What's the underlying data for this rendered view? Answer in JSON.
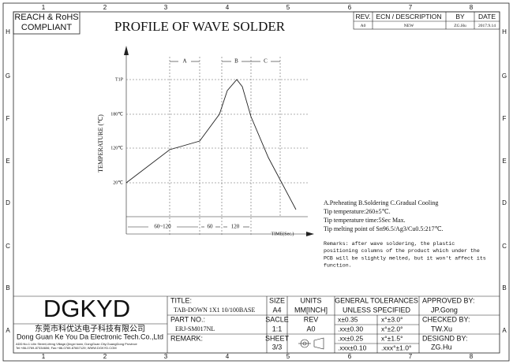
{
  "badge": [
    "REACH & RoHS",
    "COMPLIANT"
  ],
  "title": "PROFILE OF WAVE SOLDER",
  "zones": {
    "columns": [
      "1",
      "2",
      "3",
      "4",
      "5",
      "6",
      "7",
      "8"
    ],
    "rows": [
      "H",
      "G",
      "F",
      "E",
      "D",
      "C",
      "B",
      "A"
    ]
  },
  "revision": {
    "headers": [
      "REV.",
      "ECN / DESCRIPTION",
      "BY",
      "DATE"
    ],
    "rows": [
      [
        "A0",
        "NEW",
        "ZG.Hu",
        "2017.9.14"
      ]
    ]
  },
  "profile": {
    "y_axis_title": "TEMPERATURE (℃)",
    "x_axis_title": "TIME(Sec.)",
    "temperature_labels": [
      "T1P",
      "180℃",
      "120℃",
      "20℃"
    ],
    "phases": [
      "A",
      "B",
      "C"
    ],
    "durations": [
      "60~120",
      "60",
      "120"
    ]
  },
  "notes": [
    "A.Preheating  B.Soldering  C.Gradual Cooling",
    "Tip temperature:260±5℃.",
    "Tip temperature time:5Sec Max.",
    "Tip melting point of Sn96.5/Ag3/Cu0.5:217℃."
  ],
  "remarks": [
    "Remarks: after wave soldering, the plastic",
    "positioning columns of the product  which under the",
    "PCB will be slightly melted, but it won't affect its",
    "function."
  ],
  "company": {
    "logo": "DGKYD",
    "name_cn": "东莞市科优达电子科技有限公司",
    "name_en": "Dong Guan Ke You Da Electronic Tech.Co.,Ltd",
    "address": [
      "ADD:No.1 Lilin Street,Lifeng Village,Qingxi town, DongGuan City,GuangDong Province",
      "Tel:+86-0769-87334606; Fax:+86-0769-87667129; WWW.DGKYD.COM"
    ]
  },
  "title_block": {
    "title_label": "TITLE:",
    "title": "TAB-DOWN 1X1 10/100BASE",
    "size_label": "SIZE",
    "size": "A4",
    "units_label": "UNITS",
    "units": "MM[INCH]",
    "tolerance_label": [
      "GENERAL TOLERANCES",
      "UNLESS SPECIFIED"
    ],
    "tolerances": [
      [
        "x±0.35",
        "x°±3.0°"
      ],
      [
        ".xx±0.30",
        "x°±2.0°"
      ],
      [
        ".xx±0.25",
        "x°±1.5°"
      ],
      [
        ".xxx±0.10",
        ".xxx°±1.0°"
      ]
    ],
    "approved_label": "APPROVED BY:",
    "approved": "JP.Gong",
    "part_label": "PART NO.:",
    "part": "ERJ-SM017NL",
    "scale_label": "SACLE",
    "scale": "1:1",
    "rev_label": "REV",
    "rev": "A0",
    "checked_label": "CHECKED BY:",
    "checked": "TW.Xu",
    "remark_label": "REMARK:",
    "sheet_label": "SHEET",
    "sheet": "3/3",
    "designed_label": "DESIGND BY:",
    "designed": "ZG.Hu"
  }
}
